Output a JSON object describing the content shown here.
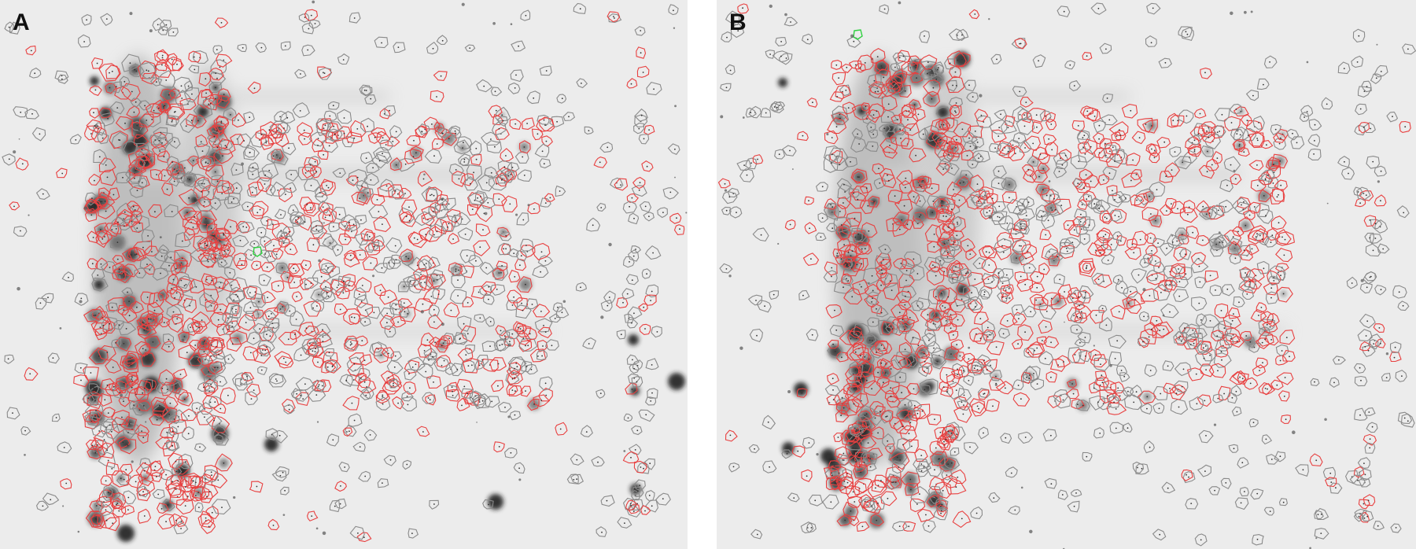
{
  "panels": [
    {
      "label": "A",
      "seed": 17,
      "spot_outline_colors": {
        "matched": "#e84040",
        "unmatched": "#8a8a8a",
        "reference": "#30d040"
      }
    },
    {
      "label": "B",
      "seed": 29,
      "spot_outline_colors": {
        "matched": "#e84040",
        "unmatched": "#8a8a8a",
        "reference": "#30d040"
      }
    }
  ],
  "background_color": "#ececec"
}
